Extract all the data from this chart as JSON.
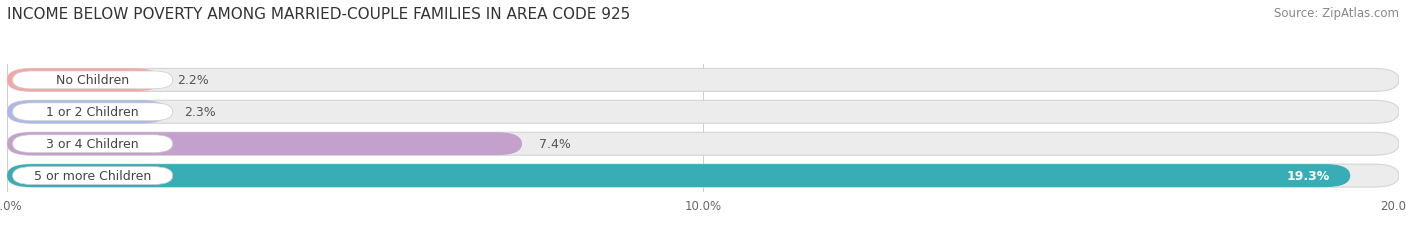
{
  "title": "INCOME BELOW POVERTY AMONG MARRIED-COUPLE FAMILIES IN AREA CODE 925",
  "source": "Source: ZipAtlas.com",
  "categories": [
    "No Children",
    "1 or 2 Children",
    "3 or 4 Children",
    "5 or more Children"
  ],
  "values": [
    2.2,
    2.3,
    7.4,
    19.3
  ],
  "bar_colors": [
    "#f2a8a6",
    "#adb8e6",
    "#c4a0cc",
    "#38adb5"
  ],
  "label_bg_color": "#ffffff",
  "bar_bg_color": "#ececec",
  "xlim": [
    0,
    20.0
  ],
  "xticks": [
    0.0,
    10.0,
    20.0
  ],
  "xtick_labels": [
    "0.0%",
    "10.0%",
    "20.0%"
  ],
  "title_fontsize": 11,
  "label_fontsize": 9,
  "value_fontsize": 9,
  "source_fontsize": 8.5,
  "background_color": "#ffffff",
  "bar_height": 0.72,
  "value_inside_last": true
}
